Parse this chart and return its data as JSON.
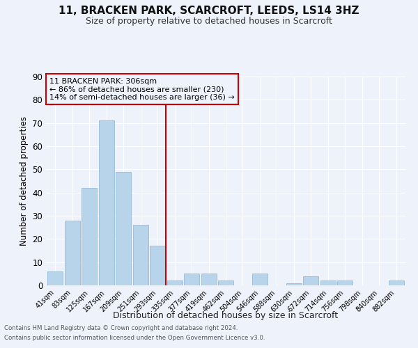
{
  "title": "11, BRACKEN PARK, SCARCROFT, LEEDS, LS14 3HZ",
  "subtitle": "Size of property relative to detached houses in Scarcroft",
  "xlabel": "Distribution of detached houses by size in Scarcroft",
  "ylabel": "Number of detached properties",
  "footnote1": "Contains HM Land Registry data © Crown copyright and database right 2024.",
  "footnote2": "Contains public sector information licensed under the Open Government Licence v3.0.",
  "annotation_line1": "11 BRACKEN PARK: 306sqm",
  "annotation_line2": "← 86% of detached houses are smaller (230)",
  "annotation_line3": "14% of semi-detached houses are larger (36) →",
  "bar_color": "#b8d4ea",
  "bar_edge_color": "#8ab4d4",
  "line_color": "#cc0000",
  "box_edge_color": "#cc0000",
  "categories": [
    "41sqm",
    "83sqm",
    "125sqm",
    "167sqm",
    "209sqm",
    "251sqm",
    "293sqm",
    "335sqm",
    "377sqm",
    "419sqm",
    "462sqm",
    "504sqm",
    "546sqm",
    "588sqm",
    "630sqm",
    "672sqm",
    "714sqm",
    "756sqm",
    "798sqm",
    "840sqm",
    "882sqm"
  ],
  "values": [
    6,
    28,
    42,
    71,
    49,
    26,
    17,
    2,
    5,
    5,
    2,
    0,
    5,
    0,
    1,
    4,
    2,
    2,
    0,
    0,
    2
  ],
  "ylim": [
    0,
    90
  ],
  "yticks": [
    0,
    10,
    20,
    30,
    40,
    50,
    60,
    70,
    80,
    90
  ],
  "vline_position": 6.5,
  "bg_color": "#eef2fa",
  "grid_color": "#ffffff"
}
